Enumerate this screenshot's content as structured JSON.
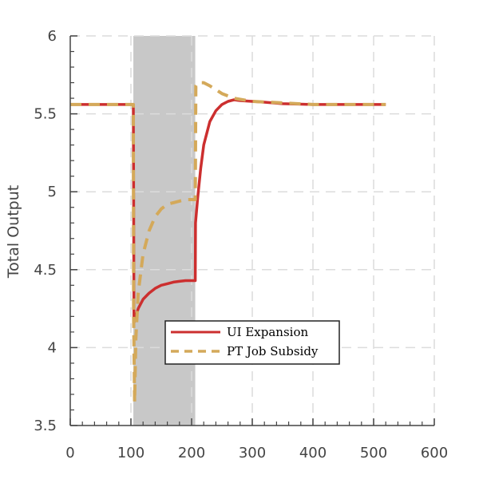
{
  "chart_data": {
    "type": "line",
    "title": "",
    "xlabel": "",
    "ylabel": "Total Output",
    "xlim": [
      0,
      600
    ],
    "ylim": [
      3.5,
      6
    ],
    "xticks": [
      0,
      100,
      200,
      300,
      400,
      500,
      600
    ],
    "yticks": [
      3.5,
      4,
      4.5,
      5,
      5.5,
      6
    ],
    "xtick_labels": [
      "0",
      "100",
      "200",
      "300",
      "400",
      "500",
      "600"
    ],
    "ytick_labels": [
      "3.5",
      "4",
      "4.5",
      "5",
      "5.5",
      "6"
    ],
    "grid": true,
    "legend_position": "bottom-center",
    "shaded_region": {
      "x": [
        104,
        206
      ],
      "color": "#c8c8c8"
    },
    "series": [
      {
        "name": "UI Expansion",
        "color": "#cc2f2f",
        "style": "solid",
        "x": [
          0,
          104,
          104.5,
          105,
          108,
          112,
          120,
          130,
          140,
          150,
          160,
          170,
          180,
          190,
          200,
          206,
          206.5,
          210,
          215,
          220,
          230,
          240,
          250,
          260,
          270,
          280,
          300,
          320,
          350,
          400,
          450,
          500,
          520
        ],
        "y": [
          5.56,
          5.56,
          4.95,
          4.16,
          4.2,
          4.25,
          4.31,
          4.35,
          4.38,
          4.4,
          4.41,
          4.42,
          4.425,
          4.43,
          4.43,
          4.43,
          4.8,
          4.96,
          5.15,
          5.3,
          5.45,
          5.52,
          5.56,
          5.58,
          5.59,
          5.585,
          5.58,
          5.575,
          5.565,
          5.56,
          5.56,
          5.56,
          5.56
        ]
      },
      {
        "name": "PT Job Subsidy",
        "color": "#d4a95a",
        "style": "dashed",
        "x": [
          0,
          104,
          104.5,
          106,
          108,
          112,
          120,
          130,
          140,
          150,
          160,
          170,
          180,
          190,
          200,
          206,
          207,
          210,
          220,
          230,
          250,
          270,
          300,
          350,
          400,
          450,
          500,
          520
        ],
        "y": [
          5.56,
          5.56,
          4.2,
          3.65,
          4.05,
          4.35,
          4.6,
          4.75,
          4.84,
          4.89,
          4.92,
          4.93,
          4.94,
          4.95,
          4.95,
          4.95,
          5.68,
          5.7,
          5.7,
          5.68,
          5.63,
          5.6,
          5.58,
          5.57,
          5.56,
          5.56,
          5.56,
          5.56
        ]
      }
    ]
  }
}
